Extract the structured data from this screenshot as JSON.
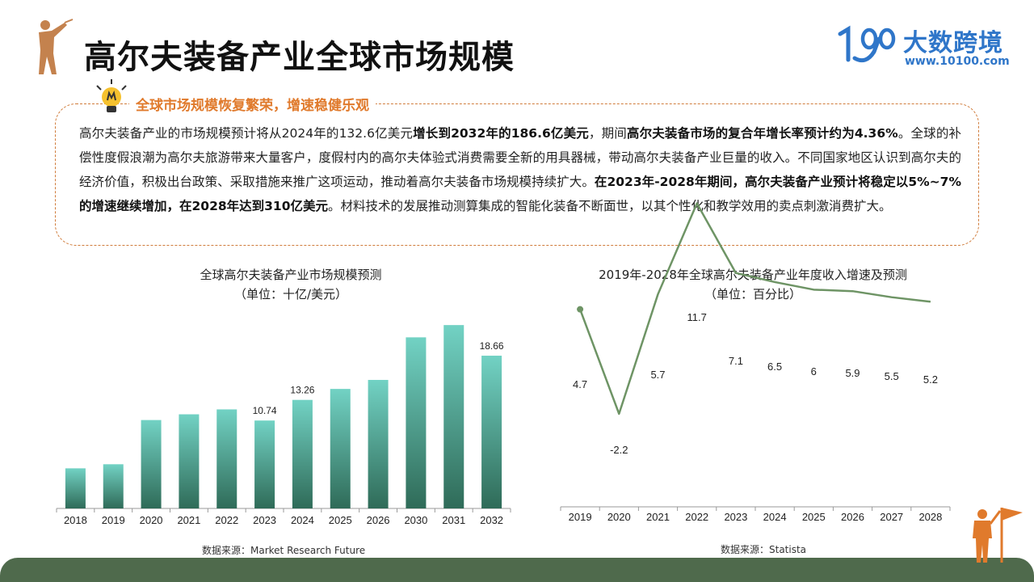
{
  "header": {
    "title": "高尔夫装备产业全球市场规模",
    "logo_name": "大数跨境",
    "logo_url": "www.10100.com"
  },
  "summary": {
    "heading": "全球市场规模恢复繁荣，增速稳健乐观",
    "segments": [
      {
        "text": "高尔夫装备产业的市场规模预计将从2024年的132.6亿美元",
        "bold": false
      },
      {
        "text": "增长到2032年的186.6亿美元",
        "bold": true
      },
      {
        "text": "，期间",
        "bold": false
      },
      {
        "text": "高尔夫装备市场的复合年增长率预计约为4.36%",
        "bold": true
      },
      {
        "text": "。全球的补偿性度假浪潮为高尔夫旅游带来大量客户，度假村内的高尔夫体验式消费需要全新的用具器械，带动高尔夫装备产业巨量的收入。不同国家地区认识到高尔夫的经济价值，积极出台政策、采取措施来推广这项运动，推动着高尔夫装备市场规模持续扩大。",
        "bold": false
      },
      {
        "text": "在2023年-2028年期间，高尔夫装备产业预计将稳定以5%~7%的增速继续增加，在2028年达到310亿美元",
        "bold": true
      },
      {
        "text": "。材料技术的发展推动测算集成的智能化装备不断面世，以其个性化和教学效用的卖点刺激消费扩大。",
        "bold": false
      }
    ]
  },
  "chart_data": [
    {
      "type": "bar",
      "title": "全球高尔夫装备产业市场规模预测",
      "subtitle": "（单位：十亿/美元）",
      "categories": [
        "2018",
        "2019",
        "2020",
        "2021",
        "2022",
        "2023",
        "2024",
        "2025",
        "2026",
        "2030",
        "2031",
        "2032"
      ],
      "values": [
        4.9,
        5.4,
        10.8,
        11.5,
        12.1,
        10.74,
        13.26,
        14.6,
        15.7,
        20.9,
        22.4,
        18.66
      ],
      "data_labels": [
        "",
        "",
        "",
        "",
        "",
        "10.74",
        "13.26",
        "",
        "",
        "",
        "",
        "18.66"
      ],
      "ylim": [
        0,
        23.5
      ],
      "bar_color_top": "#72d2c4",
      "bar_color_bottom": "#2f6b58",
      "source": "数据来源：Market Research Future"
    },
    {
      "type": "line",
      "title": "2019年-2028年全球高尔夫装备产业年度收入增速及预测",
      "subtitle": "（单位：百分比）",
      "categories": [
        "2019",
        "2020",
        "2021",
        "2022",
        "2023",
        "2024",
        "2025",
        "2026",
        "2027",
        "2028"
      ],
      "values": [
        4.7,
        -2.2,
        5.7,
        11.7,
        7.1,
        6.5,
        6,
        5.9,
        5.5,
        5.2
      ],
      "data_labels": [
        "4.7",
        "-2.2",
        "5.7",
        "11.7",
        "7.1",
        "6.5",
        "6",
        "5.9",
        "5.5",
        "5.2"
      ],
      "line_color": "#6e9465",
      "source": "数据来源：Statista"
    }
  ],
  "colors": {
    "accent_orange": "#e07a2c",
    "footer_green": "#4f6a4c",
    "logo_blue": "#2f76c9"
  }
}
